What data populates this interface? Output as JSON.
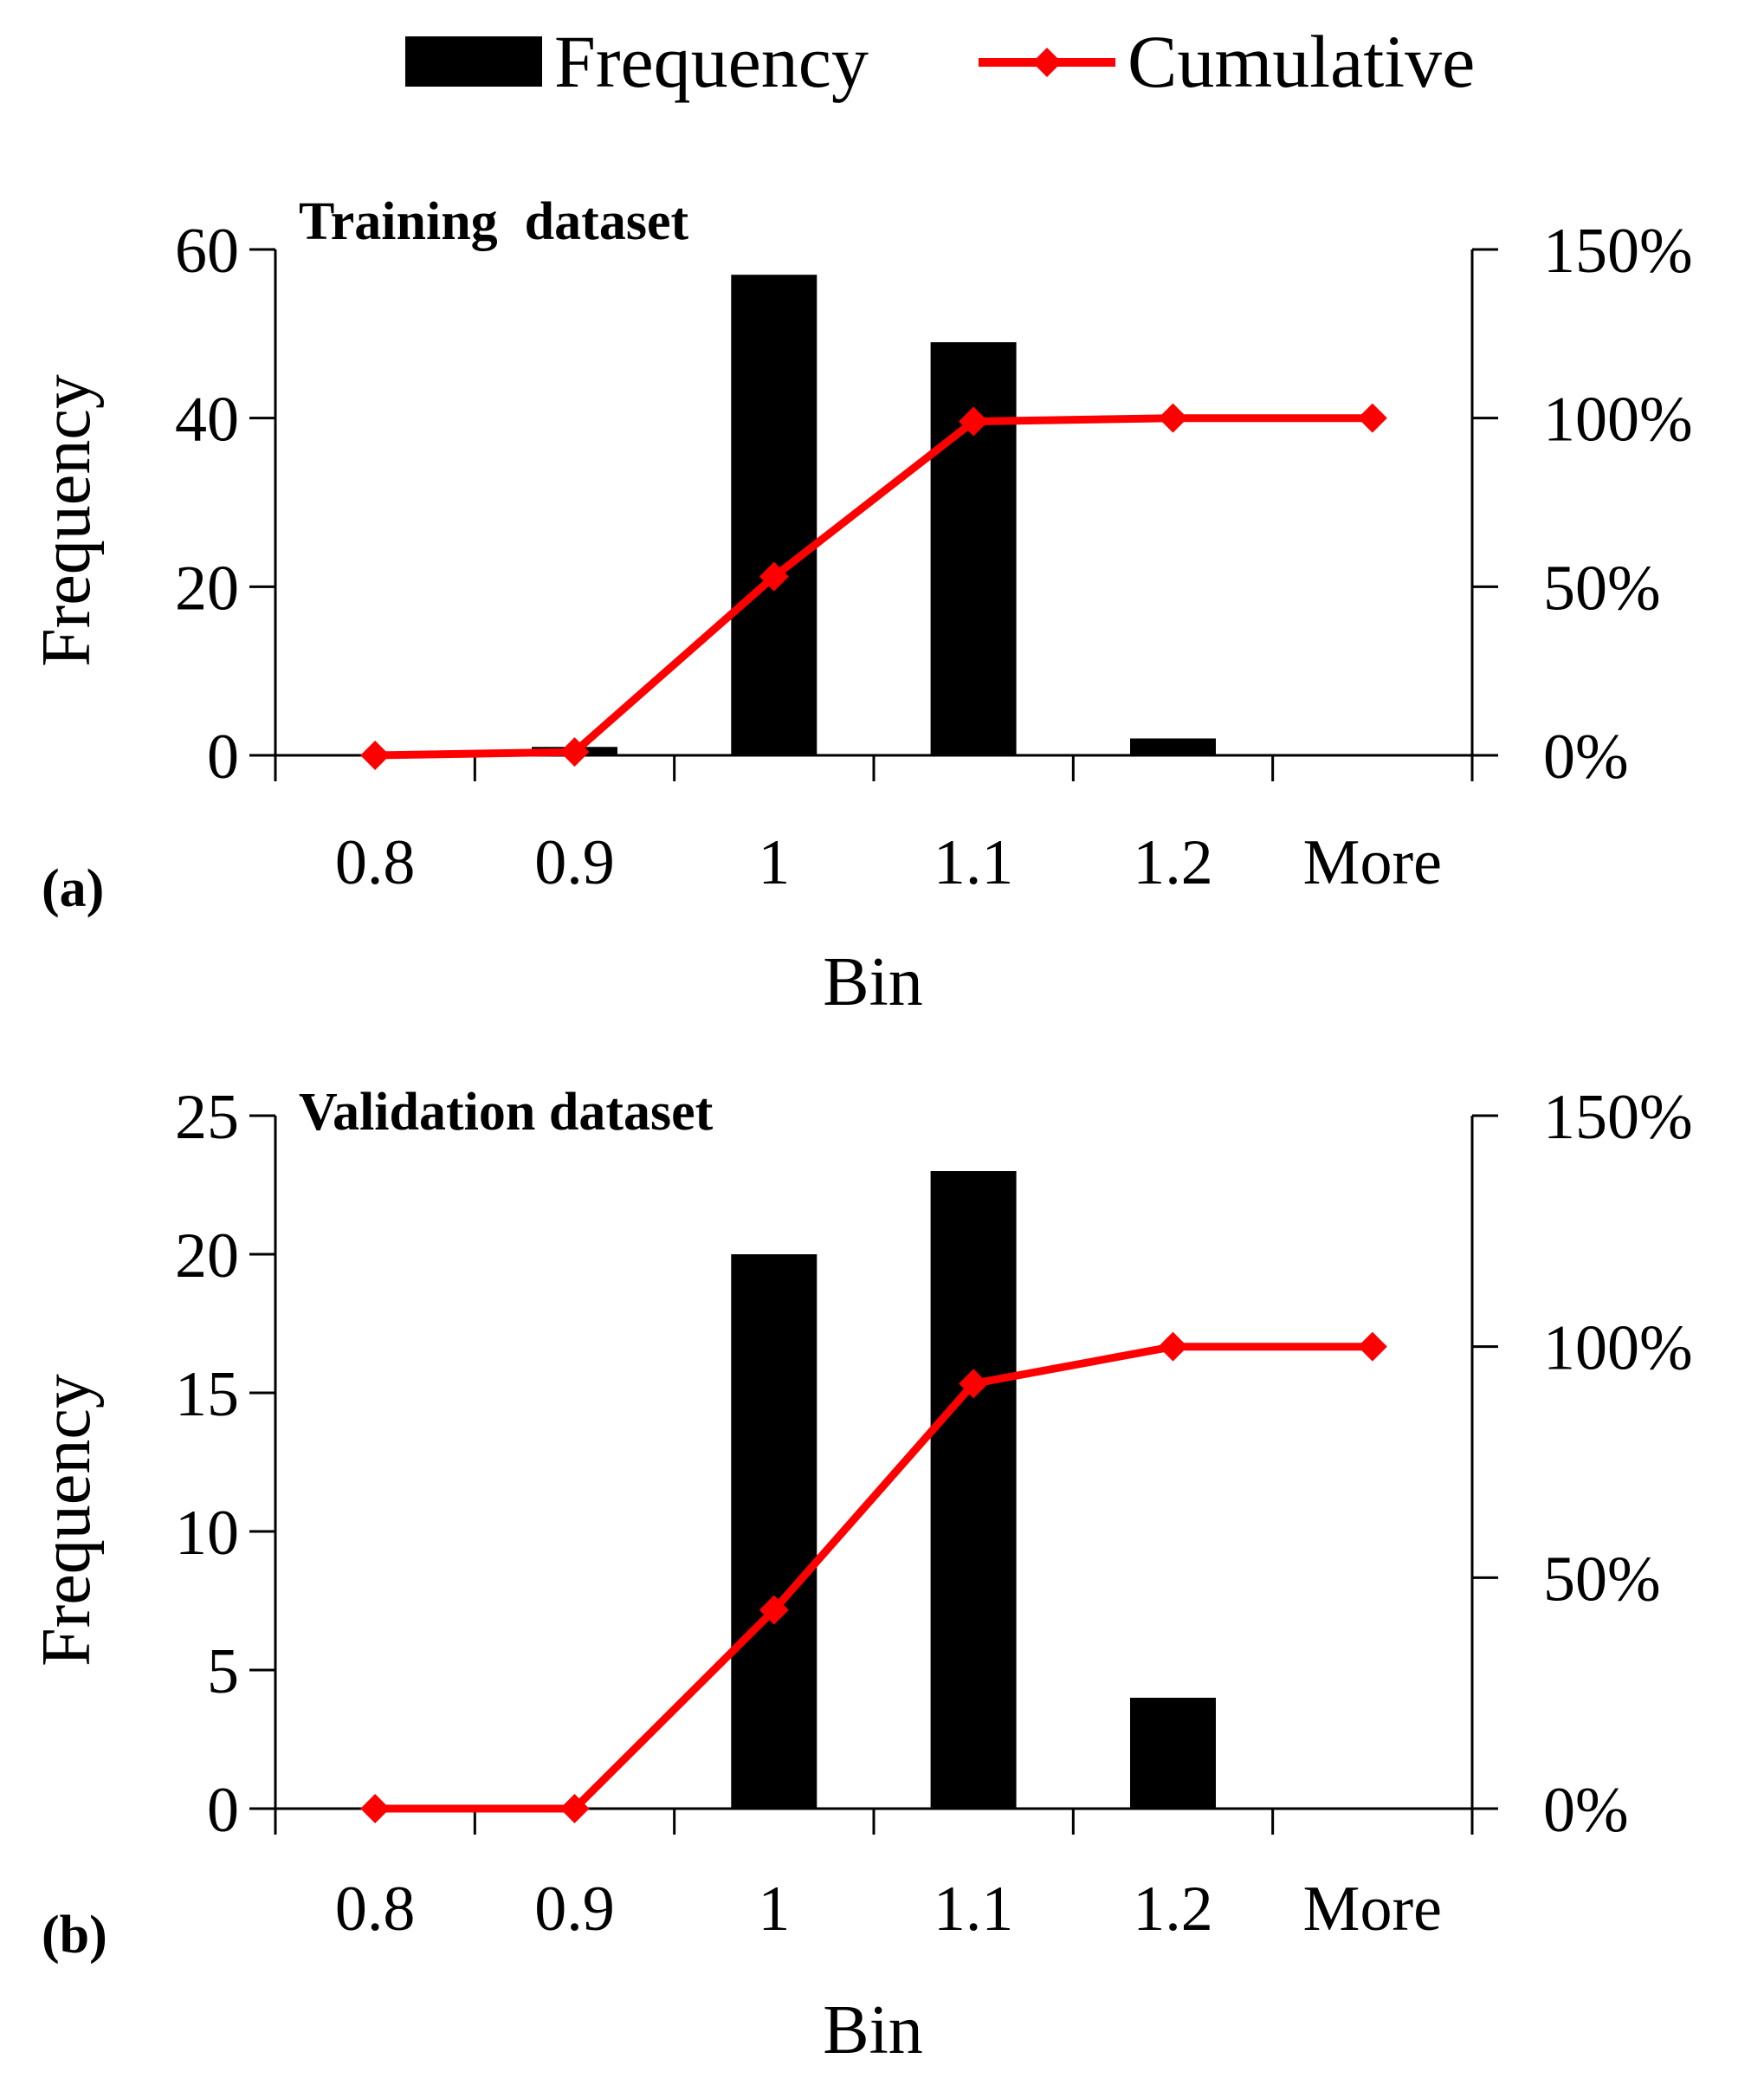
{
  "legend": {
    "frequency_label": "Frequency",
    "cumulative_label": "Cumulative"
  },
  "colors": {
    "bar": "#000000",
    "line": "#ff0000",
    "axis": "#000000"
  },
  "chart_data": [
    {
      "type": "bar",
      "panel_label": "(a)",
      "title": "Training  dataset",
      "xlabel": "Bin",
      "ylabel": "Frequency",
      "categories": [
        "0.8",
        "0.9",
        "1",
        "1.1",
        "1.2",
        "More"
      ],
      "ylim": [
        0,
        60
      ],
      "yticks": [
        0,
        20,
        40,
        60
      ],
      "y2lim": [
        0,
        150
      ],
      "y2ticks": [
        0,
        50,
        100,
        150
      ],
      "y2tick_labels": [
        "0%",
        "50%",
        "100%",
        "150%"
      ],
      "series": [
        {
          "name": "Frequency",
          "type": "bar",
          "axis": "left",
          "values": [
            0,
            1,
            57,
            49,
            2,
            0
          ]
        },
        {
          "name": "Cumulative",
          "type": "line",
          "axis": "right",
          "unit": "%",
          "values": [
            0,
            1,
            53,
            99,
            100,
            100
          ]
        }
      ]
    },
    {
      "type": "bar",
      "panel_label": "(b)",
      "title": "Validation dataset",
      "xlabel": "Bin",
      "ylabel": "Frequency",
      "categories": [
        "0.8",
        "0.9",
        "1",
        "1.1",
        "1.2",
        "More"
      ],
      "ylim": [
        0,
        25
      ],
      "yticks": [
        0,
        5,
        10,
        15,
        20,
        25
      ],
      "y2lim": [
        0,
        150
      ],
      "y2ticks": [
        0,
        50,
        100,
        150
      ],
      "y2tick_labels": [
        "0%",
        "50%",
        "100%",
        "150%"
      ],
      "series": [
        {
          "name": "Frequency",
          "type": "bar",
          "axis": "left",
          "values": [
            0,
            0,
            20,
            23,
            4,
            0
          ]
        },
        {
          "name": "Cumulative",
          "type": "line",
          "axis": "right",
          "unit": "%",
          "values": [
            0,
            0,
            43,
            92,
            100,
            100
          ]
        }
      ]
    }
  ]
}
